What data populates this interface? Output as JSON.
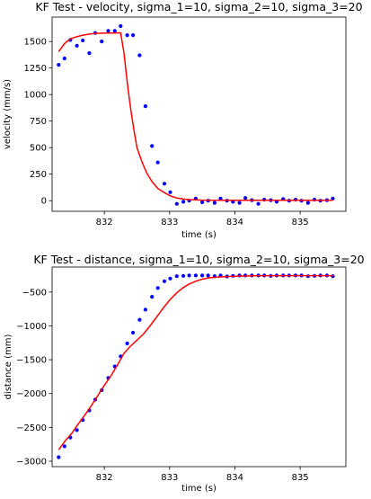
{
  "chart_data": [
    {
      "type": "line",
      "title": "KF Test - velocity, sigma_1=10, sigma_2=10, sigma_3=20",
      "xlabel": "time (s)",
      "ylabel": "velocity (mm/s)",
      "xlim": [
        831.2,
        835.7
      ],
      "ylim": [
        -100,
        1730
      ],
      "xticks": [
        832,
        833,
        834,
        835
      ],
      "yticks": [
        0,
        250,
        500,
        750,
        1000,
        1250,
        1500
      ],
      "grid": false,
      "series": [
        {
          "style": "markers",
          "color": "#0000ff",
          "x": [
            831.3,
            831.39,
            831.48,
            831.58,
            831.67,
            831.77,
            831.86,
            831.96,
            832.06,
            832.16,
            832.25,
            832.35,
            832.44,
            832.54,
            832.63,
            832.73,
            832.82,
            832.92,
            833.01,
            833.11,
            833.21,
            833.3,
            833.4,
            833.5,
            833.59,
            833.69,
            833.78,
            833.88,
            833.97,
            834.07,
            834.16,
            834.26,
            834.36,
            834.45,
            834.55,
            834.64,
            834.74,
            834.83,
            834.93,
            835.02,
            835.12,
            835.22,
            835.31,
            835.41,
            835.5
          ],
          "values": [
            1280,
            1340,
            1515,
            1460,
            1510,
            1390,
            1580,
            1500,
            1600,
            1600,
            1645,
            1560,
            1560,
            1370,
            890,
            515,
            360,
            160,
            80,
            -30,
            -10,
            0,
            20,
            -15,
            0,
            -20,
            20,
            0,
            -10,
            -20,
            25,
            5,
            -30,
            10,
            5,
            -10,
            15,
            0,
            10,
            0,
            -20,
            10,
            0,
            5,
            20
          ]
        },
        {
          "style": "line",
          "color": "#ff0000",
          "x": [
            831.3,
            831.39,
            831.48,
            831.58,
            831.67,
            831.77,
            831.86,
            831.96,
            832.06,
            832.16,
            832.25,
            832.3,
            832.35,
            832.4,
            832.45,
            832.5,
            832.58,
            832.65,
            832.73,
            832.82,
            832.92,
            833.01,
            833.11,
            833.21,
            833.3,
            833.5,
            833.7,
            834.0,
            834.5,
            835.0,
            835.5
          ],
          "values": [
            1405,
            1480,
            1525,
            1545,
            1560,
            1570,
            1575,
            1578,
            1580,
            1580,
            1582,
            1400,
            1120,
            880,
            680,
            500,
            360,
            260,
            180,
            115,
            75,
            45,
            25,
            15,
            10,
            5,
            4,
            3,
            3,
            3,
            3
          ]
        }
      ]
    },
    {
      "type": "line",
      "title": "KF Test - distance, sigma_1=10, sigma_2=10, sigma_3=20",
      "xlabel": "time (s)",
      "ylabel": "distance (mm)",
      "xlim": [
        831.2,
        835.7
      ],
      "ylim": [
        -3080,
        -130
      ],
      "xticks": [
        832,
        833,
        834,
        835
      ],
      "yticks": [
        -3000,
        -2500,
        -2000,
        -1500,
        -1000,
        -500
      ],
      "grid": false,
      "series": [
        {
          "style": "markers",
          "color": "#0000ff",
          "x": [
            831.3,
            831.39,
            831.48,
            831.58,
            831.67,
            831.77,
            831.86,
            831.96,
            832.06,
            832.16,
            832.25,
            832.35,
            832.44,
            832.54,
            832.63,
            832.73,
            832.82,
            832.92,
            833.01,
            833.11,
            833.21,
            833.3,
            833.4,
            833.5,
            833.59,
            833.69,
            833.78,
            833.88,
            833.97,
            834.07,
            834.16,
            834.26,
            834.36,
            834.45,
            834.55,
            834.64,
            834.74,
            834.83,
            834.93,
            835.02,
            835.12,
            835.22,
            835.31,
            835.41,
            835.5
          ],
          "values": [
            -2940,
            -2780,
            -2650,
            -2540,
            -2390,
            -2250,
            -2090,
            -1950,
            -1770,
            -1600,
            -1450,
            -1260,
            -1100,
            -910,
            -760,
            -570,
            -440,
            -340,
            -300,
            -265,
            -260,
            -255,
            -255,
            -255,
            -255,
            -265,
            -255,
            -270,
            -260,
            -255,
            -255,
            -255,
            -255,
            -255,
            -260,
            -255,
            -255,
            -255,
            -255,
            -255,
            -265,
            -260,
            -255,
            -255,
            -265
          ]
        },
        {
          "style": "line",
          "color": "#ff0000",
          "x": [
            831.3,
            831.4,
            831.5,
            831.6,
            831.7,
            831.8,
            831.9,
            832.0,
            832.1,
            832.2,
            832.3,
            832.4,
            832.5,
            832.6,
            832.7,
            832.8,
            832.9,
            833.0,
            833.1,
            833.2,
            833.3,
            833.4,
            833.5,
            833.6,
            833.8,
            834.0,
            834.3,
            834.6,
            835.0,
            835.5
          ],
          "values": [
            -2830,
            -2700,
            -2590,
            -2450,
            -2320,
            -2180,
            -2030,
            -1880,
            -1740,
            -1580,
            -1410,
            -1300,
            -1210,
            -1120,
            -1000,
            -870,
            -740,
            -620,
            -520,
            -440,
            -380,
            -340,
            -310,
            -290,
            -275,
            -265,
            -260,
            -258,
            -257,
            -257
          ]
        }
      ]
    }
  ]
}
